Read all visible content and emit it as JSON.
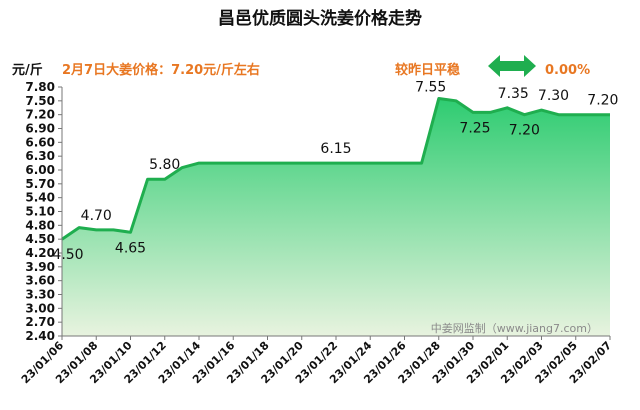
{
  "chart_data": {
    "type": "area",
    "title": "昌邑优质圆头洗姜价格走势",
    "unit_label": "元/斤",
    "price_note": "2月7日大姜价格：7.20元/斤左右",
    "change_label": "较昨日平稳",
    "change_value": "0.00%",
    "watermark": "中姜网监制（www.jiang7.com）",
    "ylim": [
      2.4,
      7.8
    ],
    "y_ticks": [
      "2.40",
      "2.70",
      "3.00",
      "3.30",
      "3.60",
      "3.90",
      "4.20",
      "4.50",
      "4.80",
      "5.10",
      "5.40",
      "5.70",
      "6.00",
      "6.30",
      "6.60",
      "6.90",
      "7.20",
      "7.50",
      "7.80"
    ],
    "x_ticks": [
      "23/01/06",
      "23/01/08",
      "23/01/10",
      "23/01/12",
      "23/01/14",
      "23/01/16",
      "23/01/18",
      "23/01/20",
      "23/01/22",
      "23/01/24",
      "23/01/26",
      "23/01/28",
      "23/01/30",
      "23/02/01",
      "23/02/03",
      "23/02/05",
      "23/02/07"
    ],
    "x": [
      "23/01/06",
      "23/01/07",
      "23/01/08",
      "23/01/09",
      "23/01/10",
      "23/01/11",
      "23/01/12",
      "23/01/13",
      "23/01/14",
      "23/01/15",
      "23/01/16",
      "23/01/17",
      "23/01/18",
      "23/01/19",
      "23/01/20",
      "23/01/21",
      "23/01/22",
      "23/01/23",
      "23/01/24",
      "23/01/25",
      "23/01/26",
      "23/01/27",
      "23/01/28",
      "23/01/29",
      "23/01/30",
      "23/01/31",
      "23/02/01",
      "23/02/02",
      "23/02/03",
      "23/02/04",
      "23/02/05",
      "23/02/06",
      "23/02/07"
    ],
    "values": [
      4.5,
      4.75,
      4.7,
      4.7,
      4.65,
      5.8,
      5.8,
      6.05,
      6.15,
      6.15,
      6.15,
      6.15,
      6.15,
      6.15,
      6.15,
      6.15,
      6.15,
      6.15,
      6.15,
      6.15,
      6.15,
      6.15,
      7.55,
      7.5,
      7.25,
      7.25,
      7.35,
      7.2,
      7.3,
      7.2,
      7.2,
      7.2,
      7.2
    ],
    "data_labels": [
      {
        "i": 0,
        "text": "4.50"
      },
      {
        "i": 2,
        "text": "4.70"
      },
      {
        "i": 4,
        "text": "4.65"
      },
      {
        "i": 6,
        "text": "5.80"
      },
      {
        "i": 16,
        "text": "6.15"
      },
      {
        "i": 22,
        "text": "7.55"
      },
      {
        "i": 24,
        "text": "7.25"
      },
      {
        "i": 26,
        "text": "7.35"
      },
      {
        "i": 27,
        "text": "7.20"
      },
      {
        "i": 28,
        "text": "7.30"
      },
      {
        "i": 31,
        "text": "7.20"
      }
    ],
    "colors": {
      "line": "#1fae4f",
      "fill_top": "#2ecc71",
      "fill_bottom": "#e8f3df",
      "accent": "#e87722",
      "arrow": "#1fae4f"
    }
  }
}
